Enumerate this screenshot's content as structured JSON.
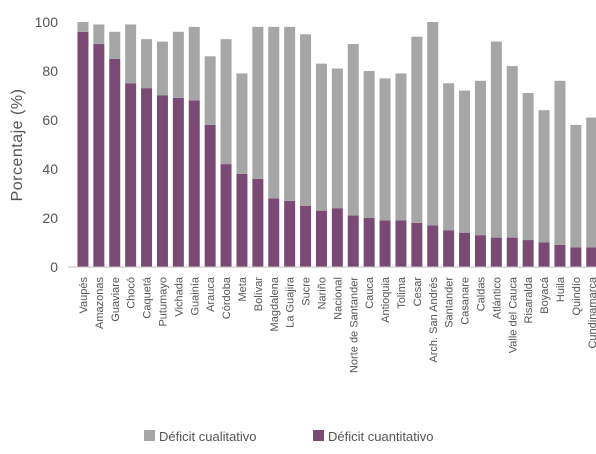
{
  "chart_data": {
    "type": "bar",
    "stacked": true,
    "ylabel": "Porcentaje (%)",
    "xlabel": "",
    "ylim": [
      0,
      100
    ],
    "yticks": [
      0,
      20,
      40,
      60,
      80,
      100
    ],
    "grid": false,
    "legend_position": "bottom",
    "categories": [
      "Vaupés",
      "Amazonas",
      "Guaviare",
      "Chocó",
      "Caquetá",
      "Putumayo",
      "Vichada",
      "Guainía",
      "Arauca",
      "Córdoba",
      "Meta",
      "Bolívar",
      "Magdalena",
      "La Guajira",
      "Sucre",
      "Nariño",
      "Nacional",
      "Norte de Santander",
      "Cauca",
      "Antioquia",
      "Tolima",
      "Cesar",
      "Arch. San Andrés",
      "Santander",
      "Casanare",
      "Caldas",
      "Atlántico",
      "Valle del Cauca",
      "Risaralda",
      "Boyacá",
      "Huila",
      "Quindío",
      "Cundinamarca"
    ],
    "series": [
      {
        "name": "Déficit cuantitativo",
        "color": "#7b4a74",
        "values": [
          96,
          91,
          85,
          75,
          73,
          70,
          69,
          68,
          58,
          42,
          38,
          36,
          28,
          27,
          25,
          23,
          24,
          21,
          20,
          19,
          19,
          18,
          17,
          15,
          14,
          13,
          12,
          12,
          11,
          10,
          9,
          8,
          8
        ]
      },
      {
        "name": "Déficit cualitativo",
        "color": "#a6a6a6",
        "values": [
          4,
          8,
          11,
          24,
          20,
          22,
          27,
          30,
          28,
          51,
          41,
          62,
          70,
          71,
          70,
          60,
          57,
          70,
          60,
          58,
          60,
          76,
          83,
          60,
          58,
          63,
          80,
          70,
          60,
          54,
          67,
          50,
          53
        ]
      }
    ]
  }
}
